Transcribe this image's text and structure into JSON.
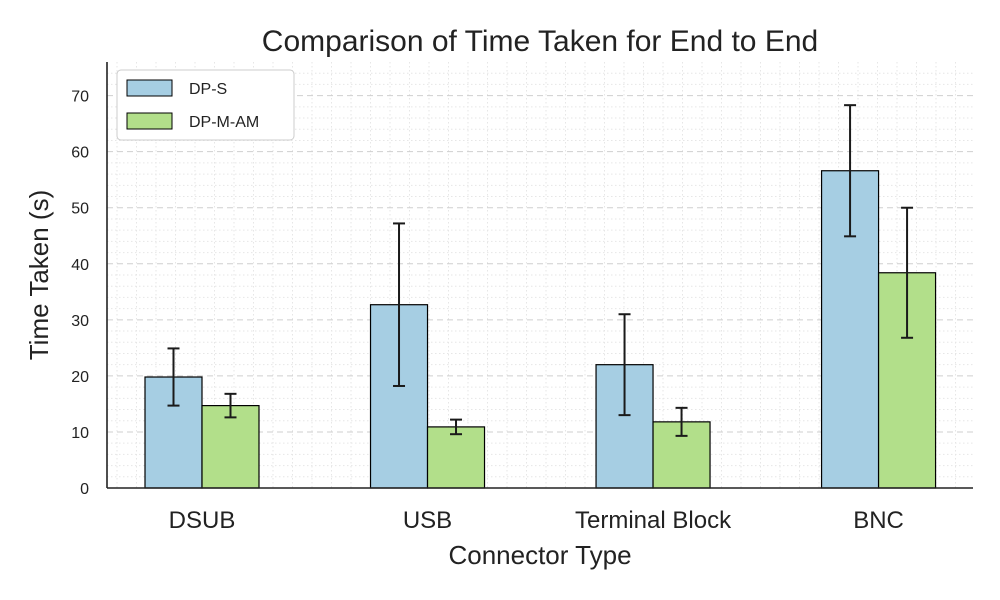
{
  "chart_data": {
    "type": "bar",
    "title": "Comparison of Time Taken for End to End",
    "xlabel": "Connector Type",
    "ylabel": "Time Taken (s)",
    "categories": [
      "DSUB",
      "USB",
      "Terminal Block",
      "BNC"
    ],
    "ylim": [
      0,
      76
    ],
    "yticks": [
      0,
      10,
      20,
      30,
      40,
      50,
      60,
      70
    ],
    "grid": true,
    "legend_position": "top-left",
    "series": [
      {
        "name": "DP-S",
        "color": "#a6cee3",
        "values": [
          19.8,
          32.7,
          22.0,
          56.6
        ],
        "errors": [
          5.1,
          14.5,
          9.0,
          11.7
        ]
      },
      {
        "name": "DP-M-AM",
        "color": "#b2df8a",
        "values": [
          14.7,
          10.9,
          11.8,
          38.4
        ],
        "errors": [
          2.1,
          1.3,
          2.5,
          11.6
        ]
      }
    ]
  }
}
